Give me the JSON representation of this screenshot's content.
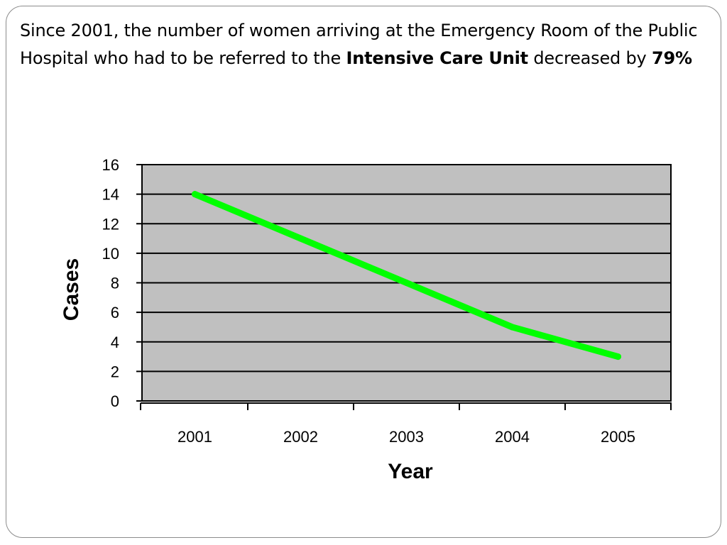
{
  "headline": {
    "part1": "Since 2001, the number of women arriving at the Emergency Room of the Public Hospital who had to be referred to the ",
    "bold1": "Intensive Care Unit",
    "part2": " decreased by ",
    "bold2": "79%"
  },
  "chart_data": {
    "type": "line",
    "categories": [
      "2001",
      "2002",
      "2003",
      "2004",
      "2005"
    ],
    "series": [
      {
        "values": [
          14,
          11,
          8,
          5,
          3
        ],
        "color": "#00ff00"
      }
    ],
    "title": "",
    "xlabel": "Year",
    "ylabel": "Cases",
    "ylim": [
      0,
      16
    ],
    "yticks": [
      0,
      2,
      4,
      6,
      8,
      10,
      12,
      14,
      16
    ],
    "grid": true,
    "legend": "none",
    "plot_background": "#c0c0c0"
  }
}
